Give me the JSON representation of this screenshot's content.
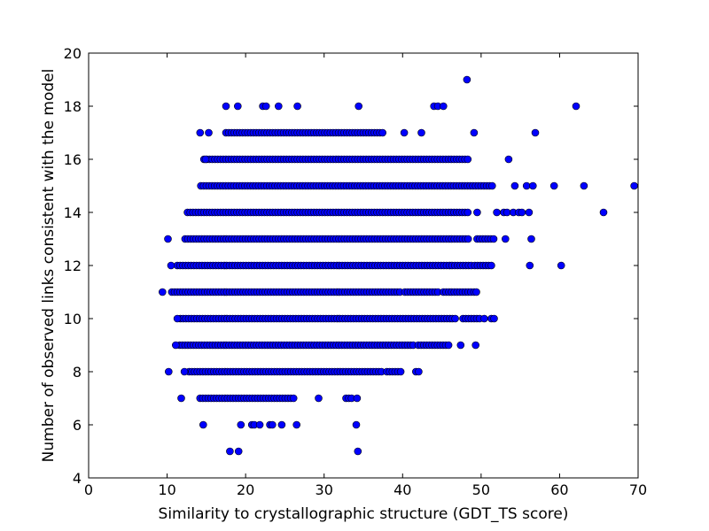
{
  "chart_data": {
    "type": "scatter",
    "title": "",
    "xlabel": "Similarity to crystallographic structure (GDT_TS score)",
    "ylabel": "Number of observed links consistent with the model",
    "xlim": [
      0,
      70
    ],
    "ylim": [
      4,
      20
    ],
    "xticks": [
      "0",
      "10",
      "20",
      "30",
      "40",
      "50",
      "60",
      "70"
    ],
    "yticks": [
      "4",
      "6",
      "8",
      "10",
      "12",
      "14",
      "16",
      "18",
      "20"
    ],
    "grid": false,
    "legend": "none",
    "marker_color": "#0000ff",
    "series": [
      {
        "rows": [
          {
            "y": 5,
            "segments": [],
            "points": [
              18.0,
              19.1,
              34.3
            ]
          },
          {
            "y": 6,
            "segments": [],
            "points": [
              14.6,
              19.4,
              20.8,
              21.1,
              21.8,
              23.1,
              23.4,
              24.6,
              26.5,
              34.1
            ]
          },
          {
            "y": 7,
            "segments": [
              [
                14.2,
                26.3
              ],
              [
                32.8,
                33.5
              ]
            ],
            "points": [
              11.8,
              29.3,
              34.2
            ]
          },
          {
            "y": 8,
            "segments": [
              [
                12.8,
                37.3
              ],
              [
                38.0,
                39.9
              ],
              [
                41.7,
                42.3
              ]
            ],
            "points": [
              10.2,
              12.2
            ]
          },
          {
            "y": 9,
            "segments": [
              [
                11.6,
                41.4
              ],
              [
                42.0,
                46.0
              ]
            ],
            "points": [
              11.1,
              47.4,
              49.3
            ]
          },
          {
            "y": 10,
            "segments": [
              [
                11.7,
                47.0
              ],
              [
                47.7,
                49.8
              ],
              [
                51.3,
                51.8
              ]
            ],
            "points": [
              11.3,
              50.4
            ]
          },
          {
            "y": 11,
            "segments": [
              [
                10.6,
                39.8
              ],
              [
                40.3,
                44.6
              ],
              [
                45.2,
                48.7
              ]
            ],
            "points": [
              9.4,
              49.1,
              49.4
            ]
          },
          {
            "y": 12,
            "segments": [
              [
                11.3,
                48.9
              ],
              [
                49.2,
                51.5
              ]
            ],
            "points": [
              10.5,
              56.2,
              60.2
            ]
          },
          {
            "y": 13,
            "segments": [
              [
                12.3,
                48.4
              ],
              [
                49.5,
                51.7
              ]
            ],
            "points": [
              10.1,
              53.1,
              56.4
            ]
          },
          {
            "y": 14,
            "segments": [
              [
                12.6,
                48.6
              ]
            ],
            "points": [
              49.5,
              52.0,
              52.9,
              53.3,
              54.1,
              54.8,
              55.2,
              56.1,
              65.6
            ]
          },
          {
            "y": 15,
            "segments": [
              [
                14.3,
                51.5
              ]
            ],
            "points": [
              54.3,
              55.8,
              56.6,
              59.3,
              63.1,
              69.5
            ]
          },
          {
            "y": 16,
            "segments": [
              [
                14.7,
                48.6
              ]
            ],
            "points": [
              14.9,
              53.5
            ]
          },
          {
            "y": 17,
            "segments": [
              [
                17.5,
                37.6
              ]
            ],
            "points": [
              14.2,
              15.3,
              40.2,
              42.4,
              49.1,
              56.9
            ]
          },
          {
            "y": 18,
            "segments": [],
            "points": [
              17.5,
              19.0,
              22.2,
              22.6,
              24.2,
              26.6,
              34.4,
              44.0,
              44.5,
              45.2,
              62.1
            ]
          },
          {
            "y": 19,
            "segments": [],
            "points": [
              48.2
            ]
          }
        ]
      }
    ]
  }
}
